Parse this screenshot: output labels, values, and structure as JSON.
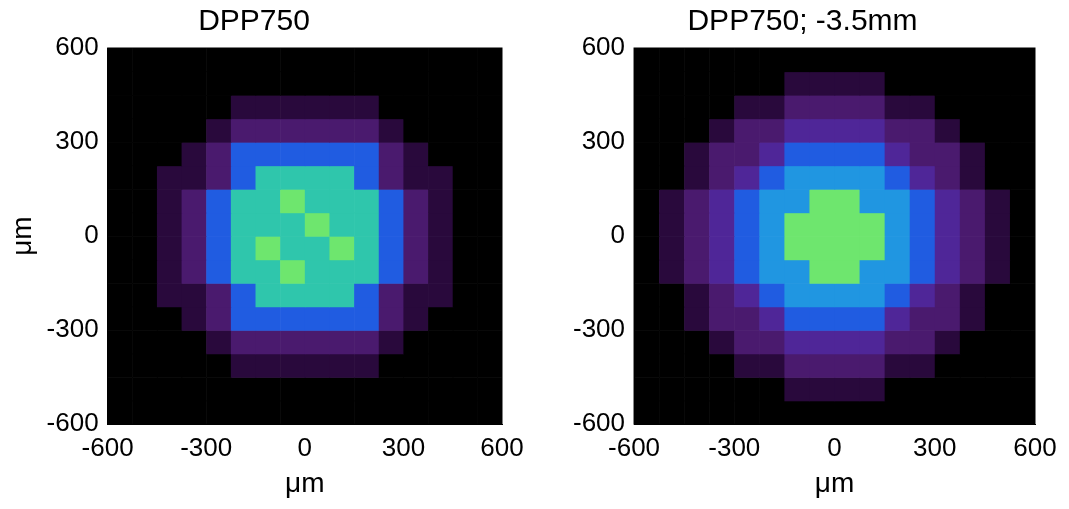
{
  "chart_data": [
    {
      "type": "heatmap",
      "title": "DPP750",
      "x_label": "μm",
      "y_label": "μm",
      "xlim": [
        -600,
        600
      ],
      "ylim": [
        -600,
        600
      ],
      "xticks": [
        -600,
        -300,
        0,
        300,
        600
      ],
      "yticks": [
        -600,
        -300,
        0,
        300,
        600
      ],
      "x_edges": [
        -600,
        -525,
        -450,
        -375,
        -300,
        -225,
        -150,
        -75,
        0,
        75,
        150,
        225,
        300,
        375,
        450,
        525,
        600
      ],
      "y_edges": [
        -600,
        -525,
        -450,
        -375,
        -300,
        -225,
        -150,
        -75,
        0,
        75,
        150,
        225,
        300,
        375,
        450,
        525,
        600
      ],
      "zlim": [
        0,
        8
      ],
      "cells": [
        [
          0,
          0,
          0,
          0,
          0,
          0,
          0,
          0,
          0,
          0,
          0,
          0,
          0,
          0,
          0,
          0
        ],
        [
          0,
          0,
          0,
          0,
          0,
          0,
          0,
          0,
          0,
          0,
          0,
          0,
          0,
          0,
          0,
          0
        ],
        [
          0,
          0,
          0,
          0,
          0,
          1,
          1,
          1,
          1,
          1,
          1,
          0,
          0,
          0,
          0,
          0
        ],
        [
          0,
          0,
          0,
          0,
          1,
          2,
          2,
          2,
          2,
          2,
          2,
          1,
          0,
          0,
          0,
          0
        ],
        [
          0,
          0,
          0,
          1,
          2,
          5,
          5,
          5,
          5,
          5,
          5,
          2,
          1,
          0,
          0,
          0
        ],
        [
          0,
          0,
          1,
          1,
          2,
          5,
          7,
          7,
          7,
          7,
          5,
          2,
          1,
          1,
          0,
          0
        ],
        [
          0,
          0,
          1,
          2,
          5,
          7,
          7,
          8,
          7,
          7,
          7,
          5,
          2,
          1,
          0,
          0
        ],
        [
          0,
          0,
          1,
          2,
          5,
          7,
          8,
          7,
          7,
          8,
          7,
          5,
          2,
          1,
          0,
          0
        ],
        [
          0,
          0,
          1,
          2,
          5,
          7,
          7,
          7,
          8,
          7,
          7,
          5,
          2,
          1,
          0,
          0
        ],
        [
          0,
          0,
          1,
          2,
          5,
          7,
          7,
          8,
          7,
          7,
          7,
          5,
          2,
          1,
          0,
          0
        ],
        [
          0,
          0,
          1,
          1,
          2,
          5,
          7,
          7,
          7,
          7,
          5,
          2,
          1,
          1,
          0,
          0
        ],
        [
          0,
          0,
          0,
          1,
          2,
          5,
          5,
          5,
          5,
          5,
          5,
          2,
          1,
          0,
          0,
          0
        ],
        [
          0,
          0,
          0,
          0,
          1,
          2,
          2,
          2,
          2,
          2,
          2,
          1,
          0,
          0,
          0,
          0
        ],
        [
          0,
          0,
          0,
          0,
          0,
          1,
          1,
          1,
          1,
          1,
          1,
          0,
          0,
          0,
          0,
          0
        ],
        [
          0,
          0,
          0,
          0,
          0,
          0,
          0,
          0,
          0,
          0,
          0,
          0,
          0,
          0,
          0,
          0
        ],
        [
          0,
          0,
          0,
          0,
          0,
          0,
          0,
          0,
          0,
          0,
          0,
          0,
          0,
          0,
          0,
          0
        ]
      ]
    },
    {
      "type": "heatmap",
      "title": "DPP750; -3.5mm",
      "x_label": "μm",
      "xlim": [
        -600,
        600
      ],
      "ylim": [
        -600,
        600
      ],
      "xticks": [
        -600,
        -300,
        0,
        300,
        600
      ],
      "yticks": [
        -600,
        -300,
        0,
        300,
        600
      ],
      "x_edges": [
        -600,
        -525,
        -450,
        -375,
        -300,
        -225,
        -150,
        -75,
        0,
        75,
        150,
        225,
        300,
        375,
        450,
        525,
        600
      ],
      "y_edges": [
        -600,
        -525,
        -450,
        -375,
        -300,
        -225,
        -150,
        -75,
        0,
        75,
        150,
        225,
        300,
        375,
        450,
        525,
        600
      ],
      "zlim": [
        0,
        8
      ],
      "cells": [
        [
          0,
          0,
          0,
          0,
          0,
          0,
          0,
          0,
          0,
          0,
          0,
          0,
          0,
          0,
          0,
          0
        ],
        [
          0,
          0,
          0,
          0,
          0,
          0,
          1,
          1,
          1,
          1,
          0,
          0,
          0,
          0,
          0,
          0
        ],
        [
          0,
          0,
          0,
          0,
          1,
          1,
          2,
          2,
          2,
          2,
          1,
          1,
          0,
          0,
          0,
          0
        ],
        [
          0,
          0,
          0,
          1,
          2,
          2,
          3,
          3,
          3,
          3,
          2,
          2,
          1,
          0,
          0,
          0
        ],
        [
          0,
          0,
          1,
          2,
          2,
          3,
          5,
          5,
          5,
          5,
          3,
          2,
          2,
          1,
          0,
          0
        ],
        [
          0,
          0,
          1,
          2,
          3,
          5,
          6,
          6,
          6,
          6,
          5,
          3,
          2,
          1,
          0,
          0
        ],
        [
          0,
          1,
          2,
          3,
          5,
          6,
          6,
          8,
          8,
          6,
          6,
          5,
          3,
          2,
          1,
          0
        ],
        [
          0,
          1,
          2,
          3,
          5,
          6,
          8,
          8,
          8,
          8,
          6,
          5,
          3,
          2,
          1,
          0
        ],
        [
          0,
          1,
          2,
          3,
          5,
          6,
          8,
          8,
          8,
          8,
          6,
          5,
          3,
          2,
          1,
          0
        ],
        [
          0,
          1,
          2,
          3,
          5,
          6,
          6,
          8,
          8,
          6,
          6,
          5,
          3,
          2,
          1,
          0
        ],
        [
          0,
          0,
          1,
          2,
          3,
          5,
          6,
          6,
          6,
          6,
          5,
          3,
          2,
          1,
          0,
          0
        ],
        [
          0,
          0,
          1,
          2,
          2,
          3,
          5,
          5,
          5,
          5,
          3,
          2,
          2,
          1,
          0,
          0
        ],
        [
          0,
          0,
          0,
          1,
          2,
          2,
          3,
          3,
          3,
          3,
          2,
          2,
          1,
          0,
          0,
          0
        ],
        [
          0,
          0,
          0,
          0,
          1,
          1,
          2,
          2,
          2,
          2,
          1,
          1,
          0,
          0,
          0,
          0
        ],
        [
          0,
          0,
          0,
          0,
          0,
          0,
          1,
          1,
          1,
          1,
          0,
          0,
          0,
          0,
          0,
          0
        ],
        [
          0,
          0,
          0,
          0,
          0,
          0,
          0,
          0,
          0,
          0,
          0,
          0,
          0,
          0,
          0,
          0
        ]
      ]
    }
  ]
}
